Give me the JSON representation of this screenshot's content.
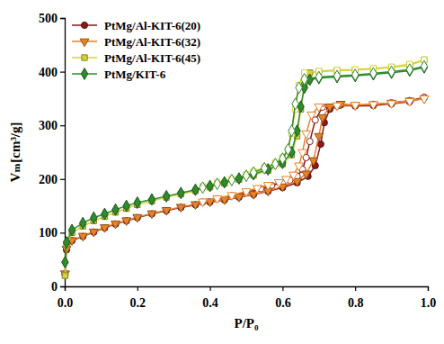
{
  "chart_data": {
    "type": "line",
    "xlabel": "P/P₀",
    "ylabel": "Vₘ[cm³/g]",
    "xlim": [
      0,
      1.0
    ],
    "ylim": [
      0,
      500
    ],
    "xticks": [
      {
        "value": 0,
        "label": "0.0"
      },
      {
        "value": 0.2,
        "label": "0.2"
      },
      {
        "value": 0.4,
        "label": "0.4"
      },
      {
        "value": 0.6,
        "label": "0.6"
      },
      {
        "value": 0.8,
        "label": "0.8"
      },
      {
        "value": 1.0,
        "label": "1.0"
      }
    ],
    "yticks": [
      0,
      100,
      200,
      300,
      400,
      500
    ],
    "grid": false,
    "legend": "upper left",
    "series": [
      {
        "name": "PtMg/Al-KIT-6(20)",
        "color": "#8b1a1a",
        "marker": "circle",
        "x": [
          0.001,
          0.005,
          0.02,
          0.05,
          0.08,
          0.11,
          0.14,
          0.17,
          0.2,
          0.24,
          0.28,
          0.32,
          0.36,
          0.4,
          0.44,
          0.48,
          0.52,
          0.56,
          0.6,
          0.64,
          0.67,
          0.69,
          0.705,
          0.715,
          0.73,
          0.76,
          0.8,
          0.85,
          0.9,
          0.95,
          0.99
        ],
        "values": [
          22,
          68,
          85,
          93,
          101,
          109,
          116,
          122,
          128,
          135,
          141,
          147,
          152,
          157,
          161,
          166,
          171,
          177,
          184,
          193,
          205,
          225,
          265,
          305,
          330,
          338,
          336,
          337,
          340,
          344,
          352
        ],
        "desorption_x": [
          0.99,
          0.95,
          0.9,
          0.85,
          0.8,
          0.75,
          0.71,
          0.69,
          0.675,
          0.665,
          0.655,
          0.64,
          0.62,
          0.6,
          0.57,
          0.54,
          0.5,
          0.46,
          0.42,
          0.38
        ],
        "desorption_values": [
          352,
          346,
          342,
          339,
          337,
          336,
          334,
          310,
          270,
          240,
          218,
          205,
          198,
          193,
          188,
          182,
          175,
          169,
          163,
          157
        ]
      },
      {
        "name": "PtMg/Al-KIT-6(32)",
        "color": "#e8822a",
        "marker": "triangle-down",
        "x": [
          0.001,
          0.005,
          0.02,
          0.05,
          0.08,
          0.11,
          0.14,
          0.17,
          0.2,
          0.24,
          0.28,
          0.32,
          0.36,
          0.4,
          0.44,
          0.48,
          0.52,
          0.56,
          0.6,
          0.64,
          0.665,
          0.685,
          0.7,
          0.71,
          0.73,
          0.76,
          0.8,
          0.85,
          0.9,
          0.95,
          0.99
        ],
        "values": [
          24,
          70,
          86,
          94,
          102,
          110,
          117,
          123,
          129,
          136,
          142,
          148,
          153,
          158,
          162,
          167,
          172,
          178,
          186,
          196,
          210,
          235,
          280,
          315,
          335,
          340,
          338,
          339,
          342,
          346,
          350
        ],
        "desorption_x": [
          0.99,
          0.95,
          0.9,
          0.85,
          0.8,
          0.75,
          0.7,
          0.68,
          0.665,
          0.655,
          0.645,
          0.63,
          0.61,
          0.59,
          0.56,
          0.53,
          0.5,
          0.46,
          0.42,
          0.38
        ],
        "desorption_values": [
          350,
          345,
          341,
          339,
          338,
          337,
          335,
          320,
          285,
          250,
          225,
          208,
          200,
          194,
          189,
          183,
          177,
          170,
          164,
          158
        ]
      },
      {
        "name": "PtMg/Al-KIT-6(45)",
        "color": "#d4d43a",
        "marker": "square",
        "x": [
          0.001,
          0.005,
          0.02,
          0.05,
          0.08,
          0.11,
          0.14,
          0.17,
          0.2,
          0.24,
          0.28,
          0.32,
          0.36,
          0.4,
          0.44,
          0.48,
          0.52,
          0.56,
          0.6,
          0.625,
          0.64,
          0.65,
          0.66,
          0.675,
          0.7,
          0.75,
          0.8,
          0.85,
          0.9,
          0.95,
          0.99
        ],
        "values": [
          20,
          78,
          100,
          112,
          122,
          130,
          138,
          145,
          152,
          159,
          166,
          172,
          178,
          185,
          192,
          199,
          207,
          216,
          228,
          245,
          280,
          330,
          375,
          398,
          400,
          402,
          403,
          405,
          408,
          412,
          422
        ],
        "desorption_x": [
          0.99,
          0.95,
          0.9,
          0.85,
          0.8,
          0.75,
          0.7,
          0.66,
          0.645,
          0.635,
          0.625,
          0.615,
          0.6,
          0.58,
          0.55,
          0.52,
          0.5,
          0.46,
          0.42,
          0.38
        ],
        "desorption_values": [
          422,
          414,
          409,
          406,
          404,
          403,
          401,
          398,
          375,
          330,
          285,
          255,
          240,
          230,
          222,
          214,
          208,
          200,
          193,
          186
        ]
      },
      {
        "name": "PtMg/KIT-6",
        "color": "#2e8b2e",
        "marker": "diamond",
        "x": [
          0.001,
          0.005,
          0.02,
          0.05,
          0.08,
          0.11,
          0.14,
          0.17,
          0.2,
          0.24,
          0.28,
          0.32,
          0.36,
          0.4,
          0.44,
          0.48,
          0.52,
          0.56,
          0.6,
          0.625,
          0.64,
          0.65,
          0.66,
          0.675,
          0.7,
          0.75,
          0.8,
          0.85,
          0.9,
          0.95,
          0.99
        ],
        "values": [
          45,
          82,
          105,
          118,
          128,
          135,
          143,
          150,
          156,
          162,
          168,
          174,
          180,
          187,
          194,
          201,
          209,
          218,
          230,
          250,
          290,
          335,
          370,
          385,
          388,
          390,
          392,
          395,
          398,
          402,
          408
        ],
        "desorption_x": [
          0.99,
          0.95,
          0.9,
          0.85,
          0.8,
          0.75,
          0.7,
          0.66,
          0.645,
          0.635,
          0.625,
          0.615,
          0.6,
          0.58,
          0.55,
          0.52,
          0.5,
          0.46,
          0.42,
          0.38
        ],
        "desorption_values": [
          410,
          404,
          400,
          397,
          394,
          392,
          390,
          386,
          370,
          340,
          290,
          255,
          238,
          228,
          220,
          212,
          206,
          198,
          191,
          184
        ]
      }
    ]
  }
}
